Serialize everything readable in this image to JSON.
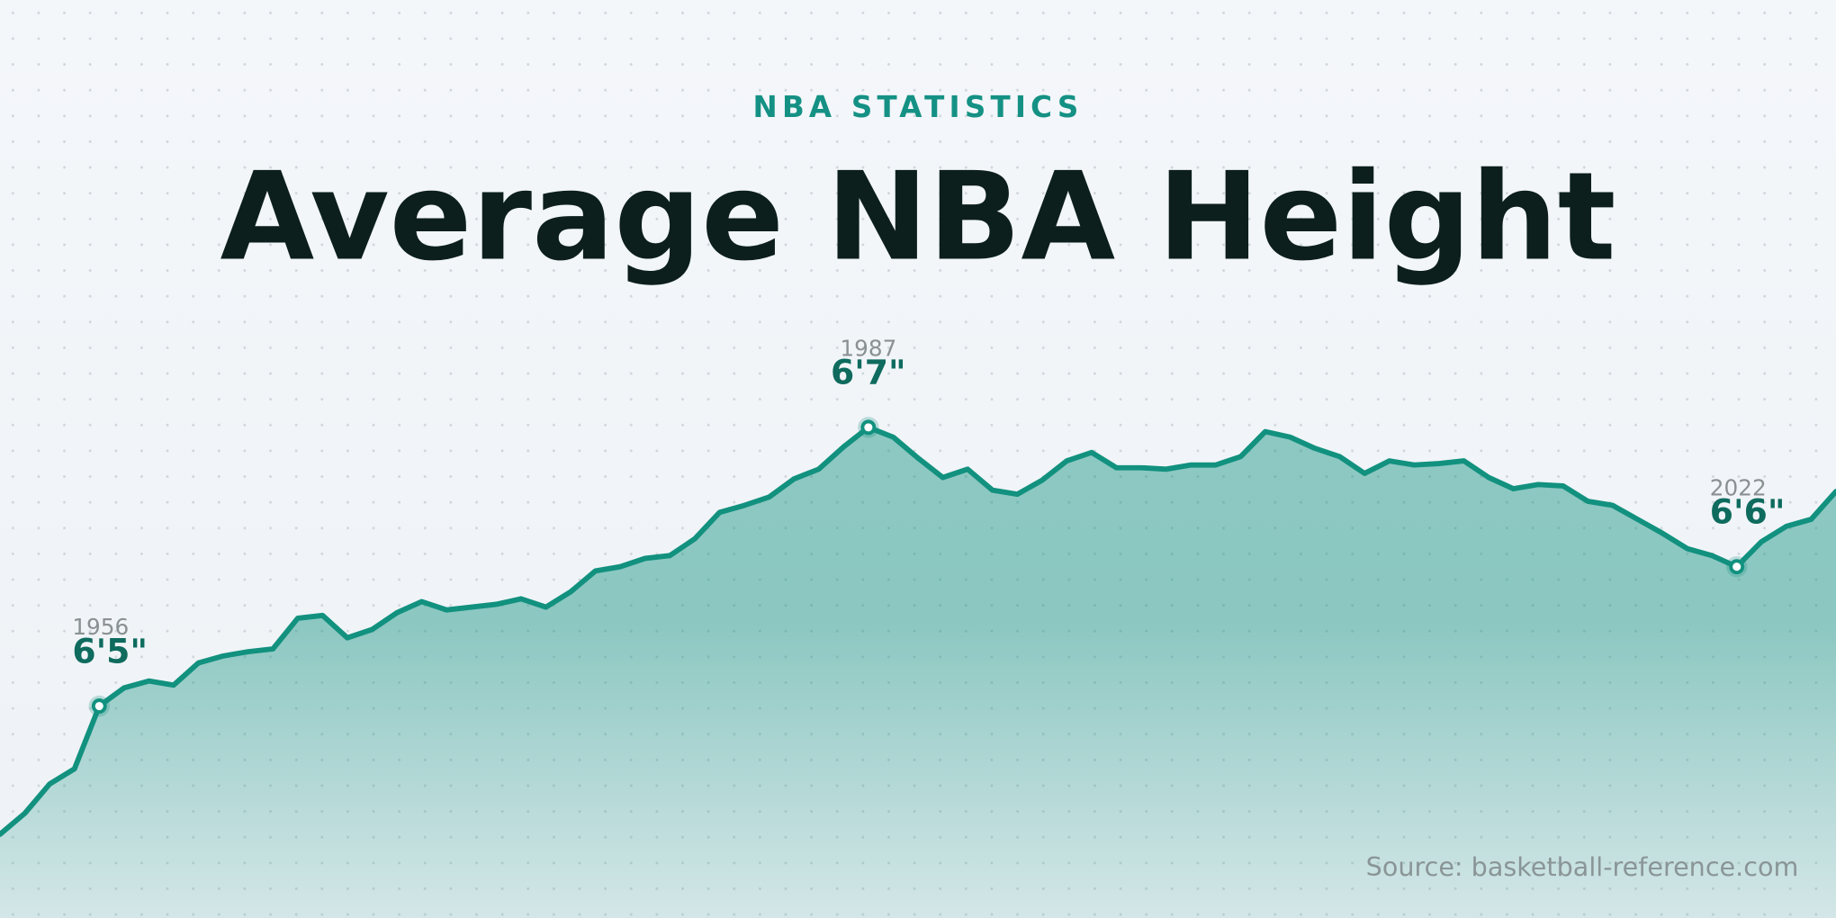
{
  "chart_data": {
    "type": "area",
    "subtitle": "NBA STATISTICS",
    "title": "Average NBA Height",
    "source": "Source: basketball-reference.com",
    "color": "#12917f",
    "ylim": [
      70,
      80
    ],
    "categories": [
      null,
      null,
      null,
      null,
      "1956",
      null,
      null,
      null,
      null,
      null,
      null,
      null,
      null,
      null,
      null,
      null,
      null,
      null,
      null,
      null,
      null,
      null,
      null,
      null,
      null,
      null,
      null,
      null,
      null,
      null,
      null,
      null,
      null,
      null,
      null,
      "1987",
      null,
      null,
      null,
      null,
      null,
      null,
      null,
      null,
      null,
      null,
      null,
      null,
      null,
      null,
      null,
      null,
      null,
      null,
      null,
      null,
      null,
      null,
      null,
      null,
      null,
      null,
      null,
      null,
      null,
      null,
      null,
      null,
      null,
      null,
      "2022",
      null,
      null,
      null,
      null
    ],
    "values": [
      76.08,
      76.23,
      76.44,
      76.55,
      77.0,
      77.13,
      77.18,
      77.15,
      77.31,
      77.36,
      77.39,
      77.41,
      77.63,
      77.65,
      77.49,
      77.55,
      77.67,
      77.75,
      77.69,
      77.71,
      77.73,
      77.77,
      77.71,
      77.82,
      77.97,
      78.0,
      78.06,
      78.08,
      78.2,
      78.39,
      78.44,
      78.5,
      78.63,
      78.7,
      78.86,
      79.0,
      78.93,
      78.78,
      78.64,
      78.7,
      78.55,
      78.52,
      78.62,
      78.76,
      78.82,
      78.71,
      78.71,
      78.7,
      78.73,
      78.73,
      78.79,
      78.97,
      78.93,
      78.85,
      78.79,
      78.67,
      78.76,
      78.73,
      78.74,
      78.76,
      78.64,
      78.56,
      78.59,
      78.58,
      78.47,
      78.44,
      78.34,
      78.24,
      78.13,
      78.08,
      78.0,
      78.18,
      78.29,
      78.34,
      78.54
    ],
    "value_labels": [
      null,
      null,
      null,
      null,
      "6'5\"",
      null,
      null,
      null,
      null,
      null,
      null,
      null,
      null,
      null,
      null,
      null,
      null,
      null,
      null,
      null,
      null,
      null,
      null,
      null,
      null,
      null,
      null,
      null,
      null,
      null,
      null,
      null,
      null,
      null,
      null,
      "6'7\"",
      null,
      null,
      null,
      null,
      null,
      null,
      null,
      null,
      null,
      null,
      null,
      null,
      null,
      null,
      null,
      null,
      null,
      null,
      null,
      null,
      null,
      null,
      null,
      null,
      null,
      null,
      null,
      null,
      null,
      null,
      null,
      null,
      null,
      null,
      "6'6\"",
      null,
      null,
      null,
      null
    ]
  }
}
